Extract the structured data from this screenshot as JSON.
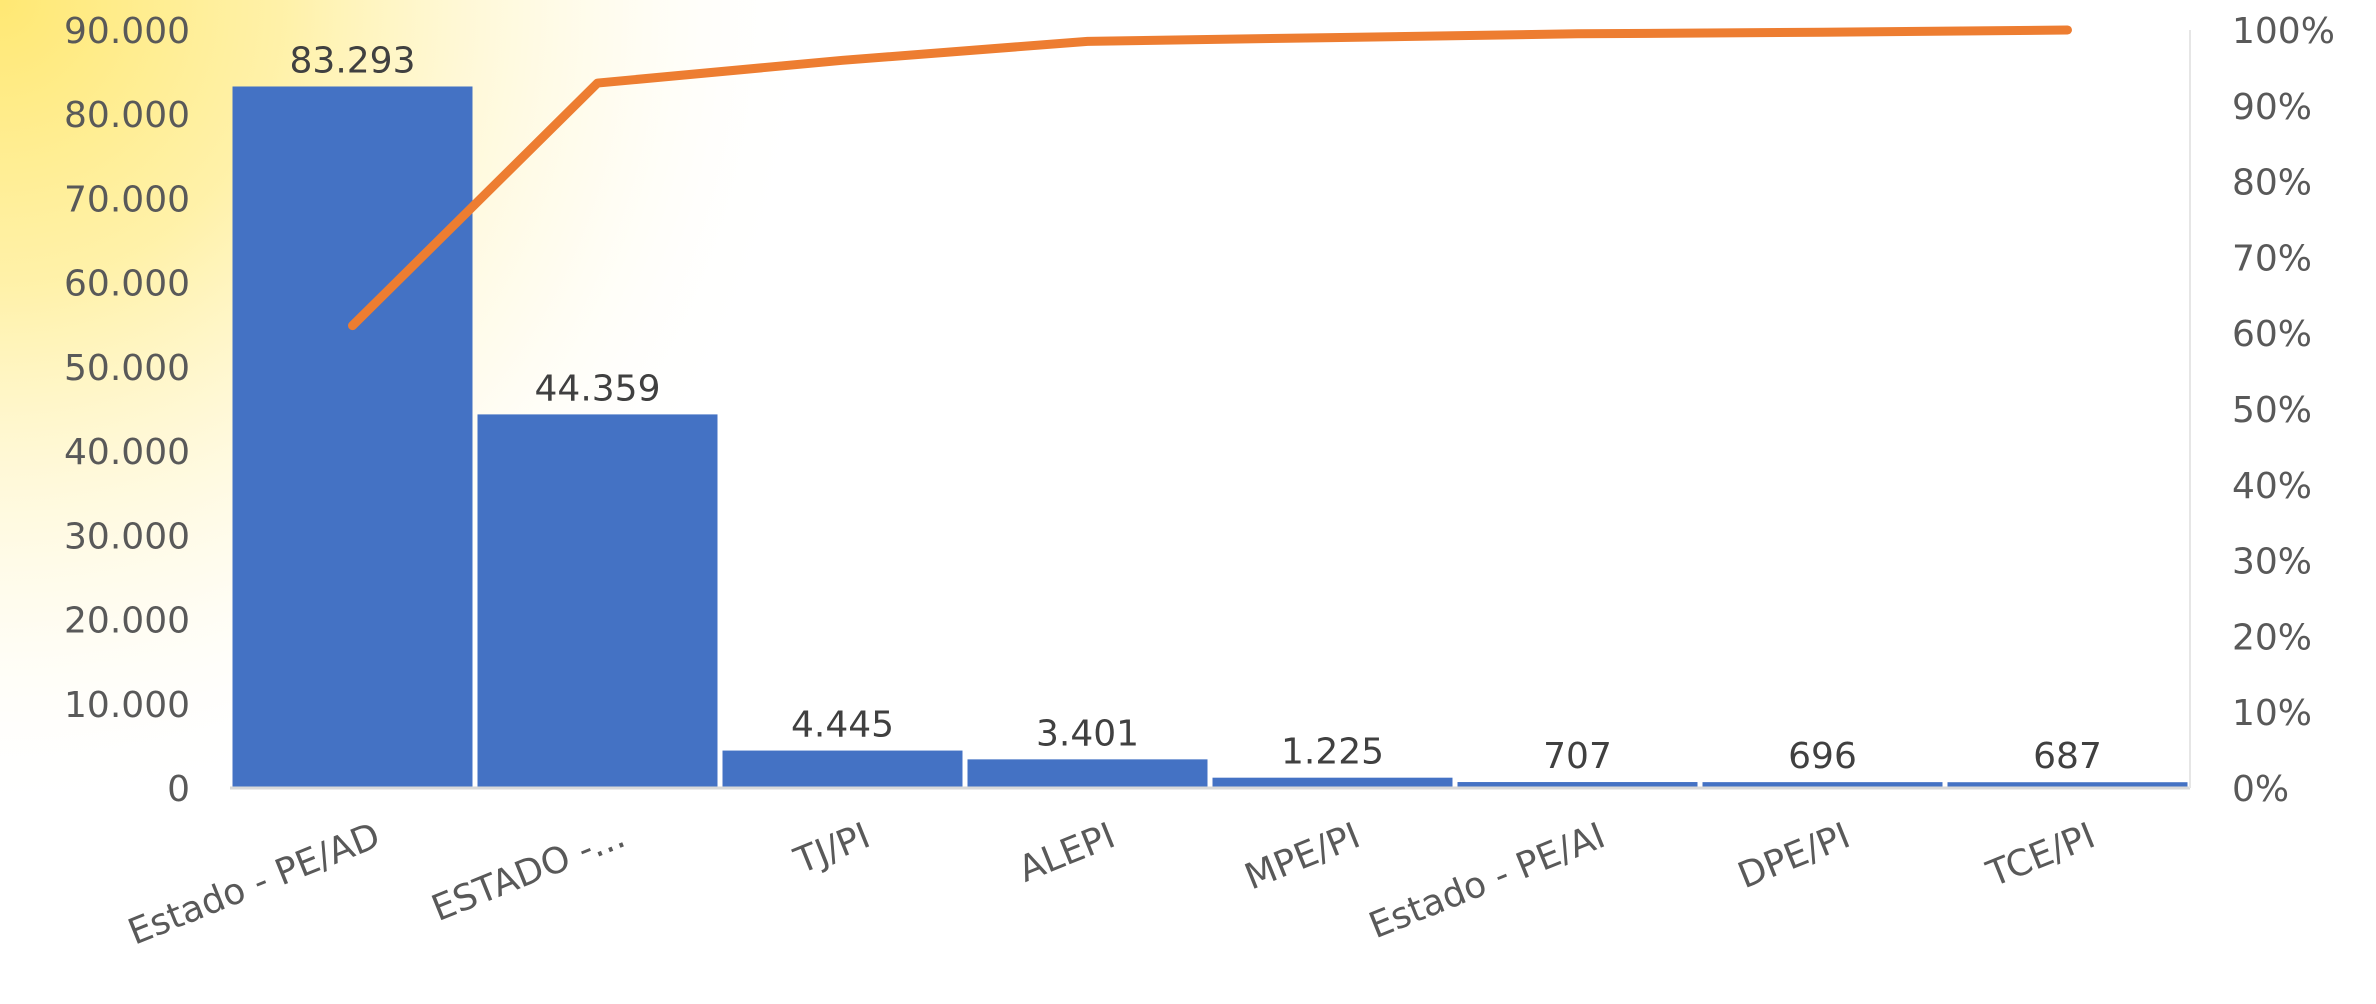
{
  "chart_data": {
    "type": "bar",
    "categories": [
      "Estado - PE/AD",
      "ESTADO -...",
      "TJ/PI",
      "ALEPI",
      "MPE/PI",
      "Estado - PE/AI",
      "DPE/PI",
      "TCE/PI"
    ],
    "series": [
      {
        "type": "bar",
        "values": [
          83293,
          44359,
          4445,
          3401,
          1225,
          707,
          696,
          687
        ]
      },
      {
        "type": "line",
        "values": [
          0.61,
          0.93,
          0.96,
          0.985,
          0.99,
          0.995,
          0.997,
          1.0
        ]
      }
    ],
    "data_labels": [
      "83.293",
      "44.359",
      "4.445",
      "3.401",
      "1.225",
      "707",
      "696",
      "687"
    ],
    "y_left_ticks": [
      "0",
      "10.000",
      "20.000",
      "30.000",
      "40.000",
      "50.000",
      "60.000",
      "70.000",
      "80.000",
      "90.000"
    ],
    "y_right_ticks": [
      "0%",
      "10%",
      "20%",
      "30%",
      "40%",
      "50%",
      "60%",
      "70%",
      "80%",
      "90%",
      "100%"
    ],
    "ylim_left": [
      0,
      90000
    ],
    "ylim_right": [
      0,
      1
    ],
    "colors": {
      "bar": "#4472C4",
      "line": "#ED7D31",
      "text": "#595959",
      "glow": "#FFE873"
    },
    "grid": false,
    "legend": "none"
  }
}
